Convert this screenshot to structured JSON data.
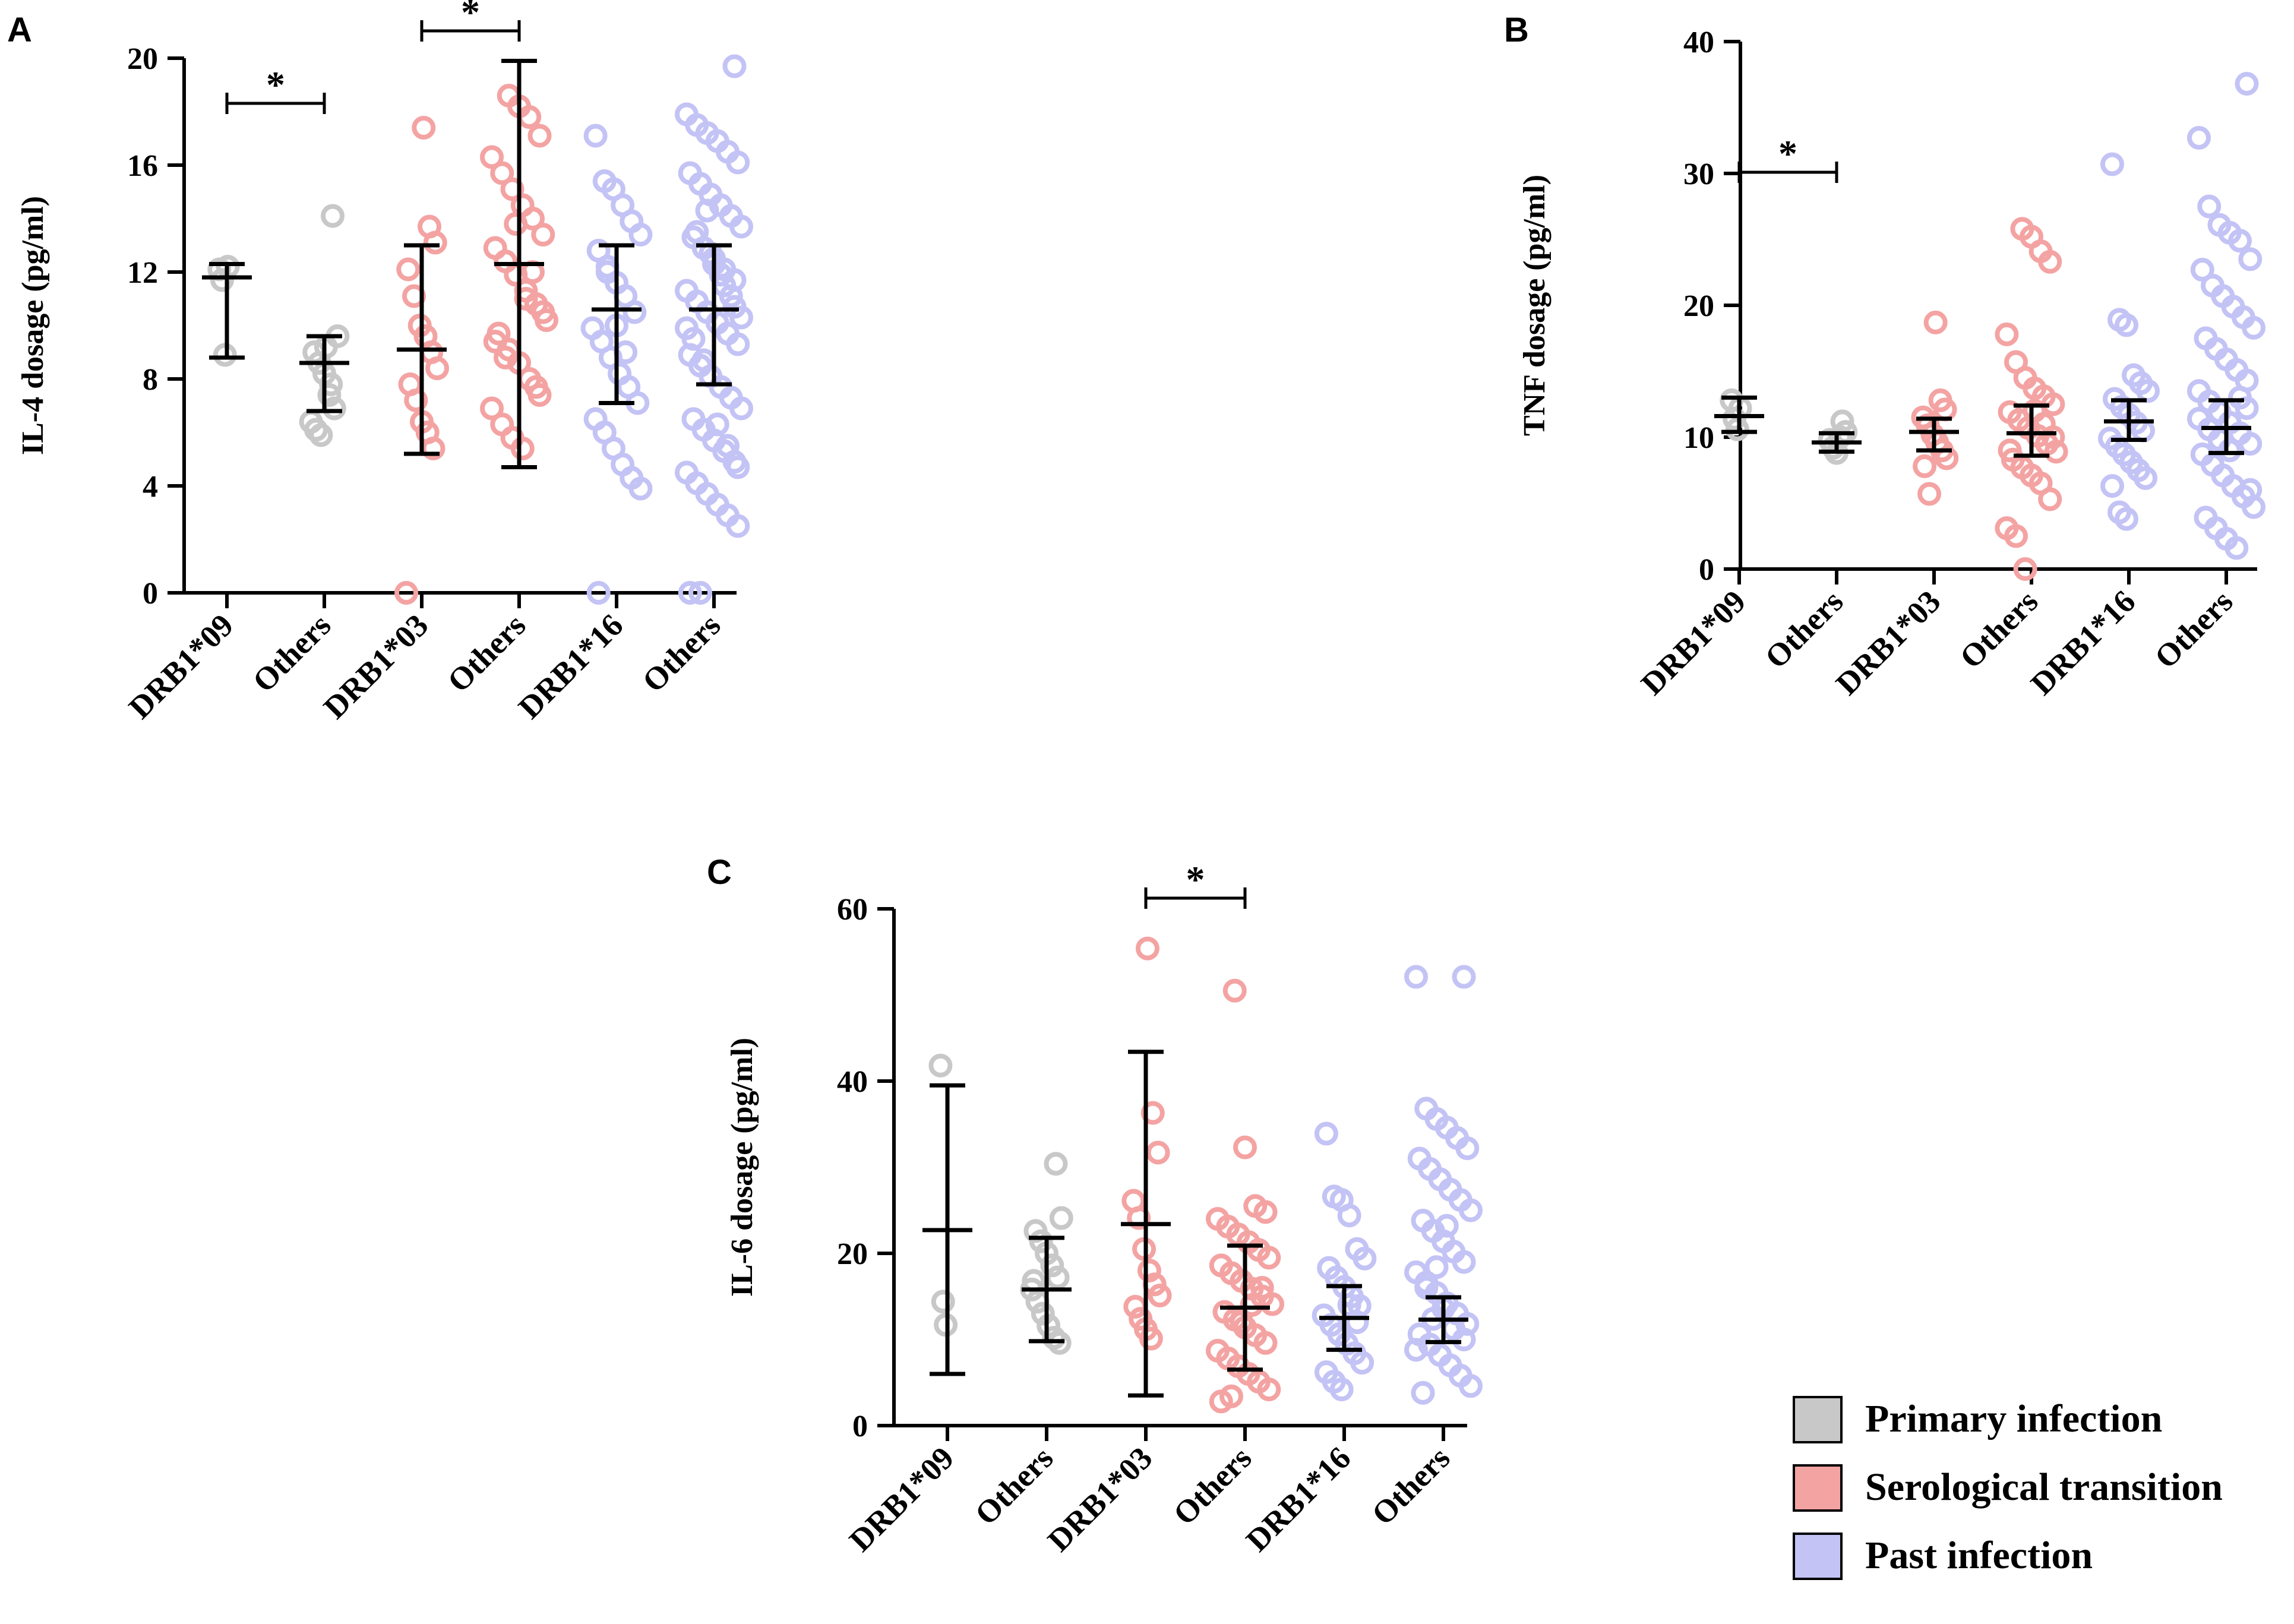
{
  "colors": {
    "primary": "#c8c8c8",
    "serological": "#f4a3a3",
    "past": "#c3c3f5",
    "axis": "#000000"
  },
  "legend": {
    "items": [
      {
        "label": "Primary infection",
        "color": "#c8c8c8"
      },
      {
        "label": "Serological transition",
        "color": "#f4a3a3"
      },
      {
        "label": "Past infection",
        "color": "#c3c3f5"
      }
    ]
  },
  "chart_data": [
    {
      "panel": "A",
      "type": "scatter",
      "ylabel": "IL-4 dosage (pg/ml)",
      "ylim": [
        0,
        20
      ],
      "yticks": [
        0,
        4,
        8,
        12,
        16,
        20
      ],
      "categories": [
        "DRB1*09",
        "Others",
        "DRB1*03",
        "Others",
        "DRB1*16",
        "Others"
      ],
      "groups": [
        "primary",
        "primary",
        "serological",
        "serological",
        "past",
        "past"
      ],
      "summary": [
        {
          "mean": 11.8,
          "low": 8.8,
          "high": 12.3
        },
        {
          "mean": 8.6,
          "low": 6.8,
          "high": 9.6
        },
        {
          "mean": 9.1,
          "low": 5.2,
          "high": 13.0
        },
        {
          "mean": 12.3,
          "low": 4.7,
          "high": 19.9
        },
        {
          "mean": 10.6,
          "low": 7.1,
          "high": 13.0
        },
        {
          "mean": 10.6,
          "low": 7.8,
          "high": 13.0
        }
      ],
      "points": [
        [
          12.1,
          11.7,
          8.9,
          12.2
        ],
        [
          14.1,
          9.6,
          9.0,
          8.6,
          8.2,
          7.4,
          6.9,
          6.4,
          6.1,
          5.9,
          9.2,
          7.8
        ],
        [
          17.4,
          13.7,
          13.1,
          12.1,
          11.1,
          10.0,
          9.6,
          9.0,
          8.4,
          7.8,
          7.2,
          6.4,
          6.0,
          5.4,
          0.0
        ],
        [
          18.6,
          18.2,
          17.8,
          17.1,
          16.3,
          15.7,
          15.1,
          14.5,
          14.0,
          13.4,
          12.9,
          12.4,
          11.9,
          11.3,
          10.8,
          10.2,
          9.7,
          9.1,
          8.6,
          8.0,
          7.4,
          6.9,
          6.3,
          5.8,
          5.4,
          12.0,
          10.5,
          9.4,
          8.8,
          13.8,
          11.0,
          7.7
        ],
        [
          17.1,
          15.4,
          15.1,
          14.5,
          13.9,
          13.4,
          12.8,
          12.2,
          11.6,
          11.1,
          10.5,
          9.9,
          9.4,
          8.8,
          8.2,
          7.7,
          7.1,
          6.5,
          6.0,
          5.4,
          4.8,
          4.3,
          3.9,
          0.0,
          12.0,
          10.0,
          9.0
        ],
        [
          19.7,
          17.9,
          17.5,
          17.2,
          16.9,
          16.5,
          16.1,
          15.7,
          15.3,
          14.9,
          14.5,
          14.1,
          13.7,
          13.3,
          12.9,
          12.5,
          12.1,
          11.7,
          11.3,
          10.9,
          10.5,
          10.1,
          9.7,
          9.3,
          8.9,
          8.5,
          8.1,
          7.7,
          7.3,
          6.9,
          6.5,
          6.1,
          5.7,
          5.3,
          4.9,
          4.5,
          4.1,
          3.7,
          3.3,
          2.9,
          2.5,
          0.0,
          0.0,
          12.7,
          11.9,
          11.1,
          10.3,
          9.5,
          8.7,
          12.3,
          11.5,
          10.7,
          9.9,
          13.5,
          14.3,
          6.3,
          5.5,
          4.7
        ]
      ],
      "significance": [
        {
          "from": 0,
          "to": 1,
          "label": "*"
        },
        {
          "from": 2,
          "to": 3,
          "label": "*"
        }
      ]
    },
    {
      "panel": "B",
      "type": "scatter",
      "ylabel": "TNF dosage (pg/ml)",
      "ylim": [
        0,
        40
      ],
      "yticks": [
        0,
        10,
        20,
        30,
        40
      ],
      "categories": [
        "DRB1*09",
        "Others",
        "DRB1*03",
        "Others",
        "DRB1*16",
        "Others"
      ],
      "groups": [
        "primary",
        "primary",
        "serological",
        "serological",
        "past",
        "past"
      ],
      "summary": [
        {
          "mean": 11.6,
          "low": 10.4,
          "high": 13.0
        },
        {
          "mean": 9.6,
          "low": 8.9,
          "high": 10.3
        },
        {
          "mean": 10.4,
          "low": 9.0,
          "high": 11.4
        },
        {
          "mean": 10.3,
          "low": 8.6,
          "high": 12.4
        },
        {
          "mean": 11.2,
          "low": 9.8,
          "high": 12.8
        },
        {
          "mean": 10.7,
          "low": 8.8,
          "high": 12.8
        }
      ],
      "points": [
        [
          12.8,
          11.4,
          10.6,
          12.2
        ],
        [
          11.2,
          10.4,
          9.8,
          9.2,
          8.8,
          10.0
        ],
        [
          18.7,
          12.8,
          12.1,
          11.5,
          10.9,
          10.2,
          9.6,
          9.0,
          8.4,
          7.8,
          5.7
        ],
        [
          25.8,
          25.2,
          24.1,
          23.3,
          17.8,
          15.7,
          14.5,
          13.7,
          13.1,
          12.5,
          11.9,
          11.3,
          10.7,
          10.1,
          9.5,
          8.9,
          8.3,
          7.7,
          7.1,
          6.5,
          5.3,
          3.1,
          2.5,
          0.0,
          12.0,
          11.0,
          10.0,
          9.0
        ],
        [
          30.7,
          18.9,
          18.5,
          14.7,
          14.1,
          13.5,
          12.9,
          12.3,
          11.7,
          11.1,
          10.5,
          9.9,
          9.3,
          8.7,
          8.1,
          7.5,
          6.9,
          6.3,
          4.3,
          3.8
        ],
        [
          36.8,
          32.7,
          27.5,
          26.1,
          25.5,
          24.9,
          23.5,
          22.7,
          21.5,
          20.7,
          19.9,
          19.1,
          18.3,
          17.5,
          16.7,
          15.9,
          15.1,
          14.3,
          13.5,
          12.7,
          11.9,
          11.1,
          10.3,
          9.5,
          8.7,
          7.9,
          7.1,
          6.3,
          5.5,
          4.7,
          3.9,
          3.1,
          2.3,
          1.6,
          12.2,
          11.4,
          10.6,
          9.8,
          9.0,
          13.0,
          6.0
        ]
      ],
      "significance": [
        {
          "from": 0,
          "to": 1,
          "label": "*"
        }
      ]
    },
    {
      "panel": "C",
      "type": "scatter",
      "ylabel": "IL-6 dosage (pg/ml)",
      "ylim": [
        0,
        60
      ],
      "yticks": [
        0,
        20,
        40,
        60
      ],
      "categories": [
        "DRB1*09",
        "Others",
        "DRB1*03",
        "Others",
        "DRB1*16",
        "Others"
      ],
      "groups": [
        "primary",
        "primary",
        "serological",
        "serological",
        "past",
        "past"
      ],
      "summary": [
        {
          "mean": 22.7,
          "low": 6.0,
          "high": 39.5
        },
        {
          "mean": 15.8,
          "low": 9.8,
          "high": 21.8
        },
        {
          "mean": 23.4,
          "low": 3.5,
          "high": 43.4
        },
        {
          "mean": 13.7,
          "low": 6.5,
          "high": 20.9
        },
        {
          "mean": 12.5,
          "low": 8.8,
          "high": 16.2
        },
        {
          "mean": 12.3,
          "low": 9.7,
          "high": 14.9
        }
      ],
      "points": [
        [
          41.8,
          14.4,
          11.7
        ],
        [
          30.4,
          24.1,
          22.6,
          21.4,
          20.0,
          18.6,
          17.2,
          15.8,
          14.4,
          13.0,
          11.6,
          10.2,
          9.6,
          16.8
        ],
        [
          55.4,
          36.3,
          31.7,
          26.1,
          24.1,
          20.5,
          18.0,
          16.4,
          15.1,
          13.8,
          12.4,
          11.2,
          10.1
        ],
        [
          50.5,
          32.3,
          25.5,
          24.8,
          24.0,
          23.1,
          22.2,
          21.3,
          20.4,
          19.5,
          18.6,
          17.7,
          16.8,
          15.9,
          15.0,
          14.1,
          13.2,
          12.3,
          11.4,
          10.5,
          9.6,
          8.7,
          7.8,
          6.9,
          6.0,
          5.1,
          4.2,
          2.8,
          3.4,
          12.0,
          14.0,
          16.0
        ],
        [
          33.9,
          26.6,
          26.2,
          24.4,
          20.5,
          19.4,
          18.3,
          17.2,
          16.1,
          15.0,
          13.9,
          12.8,
          11.7,
          10.6,
          9.5,
          8.4,
          7.3,
          6.2,
          5.1,
          4.2,
          14.0,
          12.0
        ],
        [
          52.1,
          52.1,
          36.8,
          35.6,
          34.6,
          33.4,
          32.2,
          31.0,
          29.8,
          28.6,
          27.4,
          26.2,
          25.0,
          23.8,
          22.6,
          21.4,
          20.2,
          19.0,
          17.8,
          16.6,
          15.4,
          14.2,
          13.0,
          11.8,
          10.6,
          9.4,
          8.2,
          7.0,
          5.8,
          4.6,
          3.8,
          12.4,
          13.6,
          11.2,
          10.0,
          8.8,
          16.0,
          18.4,
          23.2
        ]
      ],
      "significance": [
        {
          "from": 2,
          "to": 3,
          "label": "*"
        }
      ]
    }
  ]
}
